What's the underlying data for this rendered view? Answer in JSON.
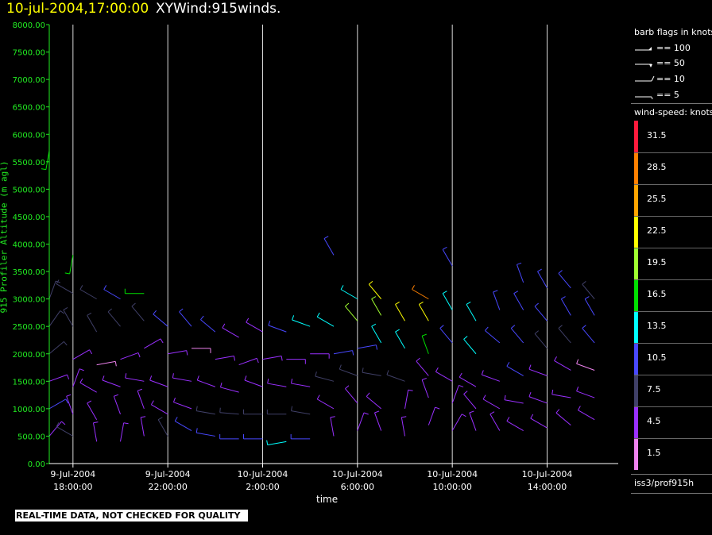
{
  "title": {
    "date": "10-jul-2004,17:00:00",
    "product": "XYWind:915winds."
  },
  "note": "REAL-TIME DATA, NOT CHECKED FOR QUALITY",
  "legend": {
    "flags_title": "barb flags in knots",
    "flags": [
      {
        "label": "== 100",
        "icon": "pennant-barb-icon"
      },
      {
        "label": "== 50",
        "icon": "full-barb-icon"
      },
      {
        "label": "== 10",
        "icon": "long-barb-icon"
      },
      {
        "label": "== 5",
        "icon": "short-barb-icon"
      }
    ],
    "speed_title": "wind-speed: knots",
    "colorbar": [
      {
        "label": "31.5",
        "color": "#ff1a3c"
      },
      {
        "label": "28.5",
        "color": "#ff8000"
      },
      {
        "label": "25.5",
        "color": "#ffa500"
      },
      {
        "label": "22.5",
        "color": "#ffff00"
      },
      {
        "label": "19.5",
        "color": "#a0ff30"
      },
      {
        "label": "16.5",
        "color": "#00e000"
      },
      {
        "label": "13.5",
        "color": "#00ffff"
      },
      {
        "label": "10.5",
        "color": "#4848ff"
      },
      {
        "label": "7.5",
        "color": "#404068"
      },
      {
        "label": "4.5",
        "color": "#9a30ff"
      },
      {
        "label": "1.5",
        "color": "#ee82ee"
      }
    ],
    "source": "iss3/prof915h"
  },
  "chart_data": {
    "type": "wind-barb",
    "xlabel": "time",
    "ylabel": "915 Profiler Altitude (m agl)",
    "x_range": [
      "2004-07-09 17:00",
      "2004-07-10 17:00"
    ],
    "ylim": [
      0,
      8000
    ],
    "y_ticks": [
      "0.00",
      "500.00",
      "1000.00",
      "1500.00",
      "2000.00",
      "2500.00",
      "3000.00",
      "3500.00",
      "4000.00",
      "4500.00",
      "5000.00",
      "5500.00",
      "6000.00",
      "6500.00",
      "7000.00",
      "7500.00",
      "8000.00"
    ],
    "x_ticks": [
      {
        "time": "2004-07-09 18:00",
        "date": "9-Jul-2004",
        "hour": "18:00:00"
      },
      {
        "time": "2004-07-09 22:00",
        "date": "9-Jul-2004",
        "hour": "22:00:00"
      },
      {
        "time": "2004-07-10 02:00",
        "date": "10-Jul-2004",
        "hour": "2:00:00"
      },
      {
        "time": "2004-07-10 06:00",
        "date": "10-Jul-2004",
        "hour": "6:00:00"
      },
      {
        "time": "2004-07-10 10:00",
        "date": "10-Jul-2004",
        "hour": "10:00:00"
      },
      {
        "time": "2004-07-10 14:00",
        "date": "10-Jul-2004",
        "hour": "14:00:00"
      }
    ],
    "grid": "vertical-at-x-ticks",
    "series": [
      {
        "time": "2004-07-09 17:00",
        "points": [
          [
            500,
            "#9a30ff",
            40
          ],
          [
            1000,
            "#4848ff",
            60
          ],
          [
            1500,
            "#9a30ff",
            70
          ],
          [
            2000,
            "#404068",
            50
          ],
          [
            2500,
            "#404068",
            35
          ],
          [
            3000,
            "#404068",
            20
          ],
          [
            5700,
            "#00e000",
            190
          ]
        ]
      },
      {
        "time": "2004-07-09 18:00",
        "points": [
          [
            500,
            "#404068",
            300
          ],
          [
            900,
            "#9a30ff",
            340
          ],
          [
            1400,
            "#9a30ff",
            20
          ],
          [
            1900,
            "#9a30ff",
            60
          ],
          [
            2500,
            "#404068",
            330
          ],
          [
            3100,
            "#404068",
            300
          ],
          [
            3800,
            "#00e000",
            190
          ]
        ]
      },
      {
        "time": "2004-07-09 19:00",
        "points": [
          [
            400,
            "#9a30ff",
            350
          ],
          [
            800,
            "#9a30ff",
            330
          ],
          [
            1300,
            "#9a30ff",
            300
          ],
          [
            1800,
            "#ee82ee",
            80
          ],
          [
            2400,
            "#404068",
            330
          ],
          [
            3000,
            "#404068",
            300
          ]
        ]
      },
      {
        "time": "2004-07-09 20:00",
        "points": [
          [
            400,
            "#9a30ff",
            10
          ],
          [
            900,
            "#9a30ff",
            340
          ],
          [
            1400,
            "#9a30ff",
            290
          ],
          [
            1900,
            "#9a30ff",
            70
          ],
          [
            2500,
            "#404068",
            320
          ],
          [
            3000,
            "#4848ff",
            300
          ]
        ]
      },
      {
        "time": "2004-07-09 21:00",
        "points": [
          [
            500,
            "#9a30ff",
            350
          ],
          [
            1000,
            "#9a30ff",
            340
          ],
          [
            1500,
            "#9a30ff",
            280
          ],
          [
            2100,
            "#9a30ff",
            60
          ],
          [
            2600,
            "#404068",
            320
          ],
          [
            3100,
            "#00e000",
            270
          ]
        ]
      },
      {
        "time": "2004-07-09 22:00",
        "points": [
          [
            500,
            "#404068",
            330
          ],
          [
            900,
            "#9a30ff",
            300
          ],
          [
            1400,
            "#9a30ff",
            290
          ],
          [
            2000,
            "#9a30ff",
            80
          ],
          [
            2500,
            "#4848ff",
            310
          ]
        ]
      },
      {
        "time": "2004-07-09 23:00",
        "points": [
          [
            600,
            "#4848ff",
            300
          ],
          [
            1000,
            "#9a30ff",
            290
          ],
          [
            1500,
            "#9a30ff",
            280
          ],
          [
            2100,
            "#ee82ee",
            90
          ],
          [
            2500,
            "#4848ff",
            320
          ]
        ]
      },
      {
        "time": "2004-07-10 00:00",
        "points": [
          [
            500,
            "#4848ff",
            280
          ],
          [
            900,
            "#404068",
            280
          ],
          [
            1400,
            "#9a30ff",
            290
          ],
          [
            1900,
            "#9a30ff",
            80
          ],
          [
            2400,
            "#4848ff",
            310
          ]
        ]
      },
      {
        "time": "2004-07-10 01:00",
        "points": [
          [
            450,
            "#4848ff",
            270
          ],
          [
            900,
            "#404068",
            275
          ],
          [
            1300,
            "#9a30ff",
            285
          ],
          [
            1800,
            "#9a30ff",
            70
          ],
          [
            2300,
            "#9a30ff",
            300
          ]
        ]
      },
      {
        "time": "2004-07-10 02:00",
        "points": [
          [
            450,
            "#4848ff",
            270
          ],
          [
            900,
            "#404068",
            270
          ],
          [
            1400,
            "#9a30ff",
            290
          ],
          [
            1900,
            "#9a30ff",
            80
          ],
          [
            2400,
            "#9a30ff",
            300
          ]
        ]
      },
      {
        "time": "2004-07-10 03:00",
        "points": [
          [
            400,
            "#00ffff",
            260
          ],
          [
            900,
            "#404068",
            270
          ],
          [
            1400,
            "#9a30ff",
            280
          ],
          [
            1900,
            "#9a30ff",
            90
          ],
          [
            2400,
            "#4848ff",
            290
          ]
        ]
      },
      {
        "time": "2004-07-10 04:00",
        "points": [
          [
            450,
            "#4848ff",
            270
          ],
          [
            900,
            "#404068",
            280
          ],
          [
            1400,
            "#9a30ff",
            280
          ],
          [
            2000,
            "#9a30ff",
            90
          ],
          [
            2500,
            "#00ffff",
            290
          ]
        ]
      },
      {
        "time": "2004-07-10 05:00",
        "points": [
          [
            500,
            "#9a30ff",
            350
          ],
          [
            1000,
            "#9a30ff",
            300
          ],
          [
            1500,
            "#404068",
            285
          ],
          [
            2000,
            "#4848ff",
            80
          ],
          [
            2500,
            "#00ffff",
            300
          ],
          [
            3800,
            "#4848ff",
            330
          ]
        ]
      },
      {
        "time": "2004-07-10 06:00",
        "points": [
          [
            600,
            "#9a30ff",
            20
          ],
          [
            1100,
            "#9a30ff",
            320
          ],
          [
            1600,
            "#404068",
            290
          ],
          [
            2100,
            "#4848ff",
            80
          ],
          [
            2600,
            "#a0ff30",
            320
          ],
          [
            3000,
            "#00ffff",
            300
          ]
        ]
      },
      {
        "time": "2004-07-10 07:00",
        "points": [
          [
            600,
            "#9a30ff",
            340
          ],
          [
            1000,
            "#9a30ff",
            310
          ],
          [
            1600,
            "#404068",
            280
          ],
          [
            2200,
            "#00ffff",
            330
          ],
          [
            2700,
            "#a0ff30",
            330
          ],
          [
            3000,
            "#ffff00",
            320
          ]
        ]
      },
      {
        "time": "2004-07-10 08:00",
        "points": [
          [
            500,
            "#9a30ff",
            350
          ],
          [
            1000,
            "#9a30ff",
            10
          ],
          [
            1500,
            "#404068",
            290
          ],
          [
            2100,
            "#00ffff",
            330
          ],
          [
            2600,
            "#ffff00",
            330
          ]
        ]
      },
      {
        "time": "2004-07-10 09:00",
        "points": [
          [
            700,
            "#9a30ff",
            20
          ],
          [
            1200,
            "#9a30ff",
            340
          ],
          [
            1600,
            "#9a30ff",
            320
          ],
          [
            2000,
            "#00e000",
            340
          ],
          [
            2600,
            "#ffff00",
            330
          ],
          [
            3000,
            "#ff8000",
            300
          ]
        ]
      },
      {
        "time": "2004-07-10 10:00",
        "points": [
          [
            600,
            "#9a30ff",
            30
          ],
          [
            1100,
            "#9a30ff",
            20
          ],
          [
            1500,
            "#9a30ff",
            300
          ],
          [
            2200,
            "#4848ff",
            320
          ],
          [
            2800,
            "#00ffff",
            330
          ],
          [
            3600,
            "#4848ff",
            330
          ]
        ]
      },
      {
        "time": "2004-07-10 11:00",
        "points": [
          [
            600,
            "#9a30ff",
            340
          ],
          [
            1000,
            "#9a30ff",
            320
          ],
          [
            1400,
            "#9a30ff",
            300
          ],
          [
            2000,
            "#00ffff",
            320
          ],
          [
            2600,
            "#00ffff",
            330
          ]
        ]
      },
      {
        "time": "2004-07-10 12:00",
        "points": [
          [
            600,
            "#9a30ff",
            330
          ],
          [
            1000,
            "#9a30ff",
            300
          ],
          [
            1500,
            "#9a30ff",
            290
          ],
          [
            2200,
            "#4848ff",
            310
          ],
          [
            2800,
            "#4848ff",
            340
          ]
        ]
      },
      {
        "time": "2004-07-10 13:00",
        "points": [
          [
            600,
            "#9a30ff",
            300
          ],
          [
            1100,
            "#9a30ff",
            280
          ],
          [
            1600,
            "#4848ff",
            300
          ],
          [
            2200,
            "#4848ff",
            320
          ],
          [
            2800,
            "#4848ff",
            330
          ],
          [
            3300,
            "#4848ff",
            340
          ]
        ]
      },
      {
        "time": "2004-07-10 14:00",
        "points": [
          [
            650,
            "#9a30ff",
            300
          ],
          [
            1100,
            "#9a30ff",
            290
          ],
          [
            1600,
            "#9a30ff",
            290
          ],
          [
            2100,
            "#404068",
            320
          ],
          [
            2600,
            "#4848ff",
            320
          ],
          [
            3200,
            "#4848ff",
            330
          ]
        ]
      },
      {
        "time": "2004-07-10 15:00",
        "points": [
          [
            700,
            "#9a30ff",
            310
          ],
          [
            1200,
            "#9a30ff",
            280
          ],
          [
            1700,
            "#9a30ff",
            300
          ],
          [
            2200,
            "#404068",
            320
          ],
          [
            2700,
            "#4848ff",
            330
          ],
          [
            3200,
            "#4848ff",
            320
          ]
        ]
      },
      {
        "time": "2004-07-10 16:00",
        "points": [
          [
            800,
            "#9a30ff",
            300
          ],
          [
            1200,
            "#9a30ff",
            290
          ],
          [
            1700,
            "#ee82ee",
            290
          ],
          [
            2200,
            "#4848ff",
            320
          ],
          [
            2700,
            "#4848ff",
            330
          ],
          [
            3000,
            "#404068",
            320
          ]
        ]
      }
    ]
  }
}
